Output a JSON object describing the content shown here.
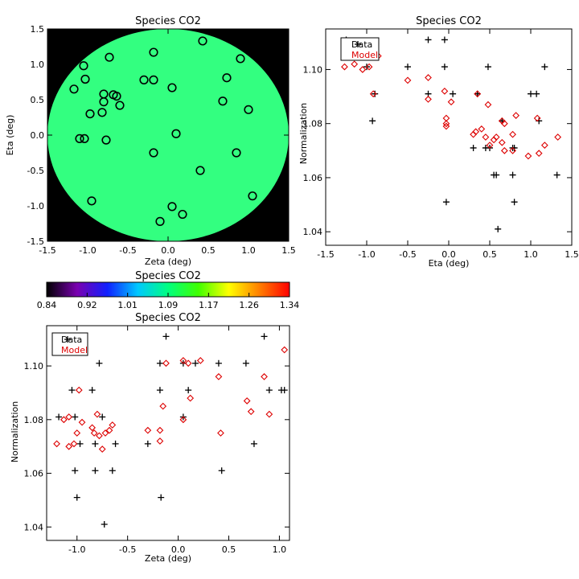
{
  "chart_data": [
    {
      "id": "map",
      "type": "scatter",
      "title": "Species CO2",
      "xlabel": "Zeta (deg)",
      "ylabel": "Eta (deg)",
      "xlim": [
        -1.5,
        1.5
      ],
      "ylim": [
        -1.5,
        1.5
      ],
      "x_ticks": [
        "-1.5",
        "-1.0",
        "-0.5",
        "0.0",
        "0.5",
        "1.0",
        "1.5"
      ],
      "y_ticks": [
        "1.5",
        "1.0",
        "0.5",
        "0.0",
        "-0.5",
        "-1.0",
        "-1.5"
      ],
      "field": {
        "shape": "disk",
        "radius": 1.5,
        "value": 1.09,
        "color": "#33ff80",
        "background": "#000000"
      },
      "points": [
        [
          0.43,
          1.33
        ],
        [
          -1.05,
          0.98
        ],
        [
          -0.73,
          1.1
        ],
        [
          -0.18,
          1.17
        ],
        [
          0.9,
          1.08
        ],
        [
          -1.03,
          0.79
        ],
        [
          -0.3,
          0.78
        ],
        [
          -0.18,
          0.78
        ],
        [
          0.73,
          0.81
        ],
        [
          -1.17,
          0.65
        ],
        [
          0.05,
          0.67
        ],
        [
          -0.8,
          0.58
        ],
        [
          -0.68,
          0.57
        ],
        [
          -0.64,
          0.55
        ],
        [
          -0.8,
          0.47
        ],
        [
          0.68,
          0.48
        ],
        [
          -0.6,
          0.42
        ],
        [
          -0.82,
          0.32
        ],
        [
          -0.97,
          0.3
        ],
        [
          1.0,
          0.36
        ],
        [
          0.1,
          0.02
        ],
        [
          -1.1,
          -0.05
        ],
        [
          -1.04,
          -0.05
        ],
        [
          -0.77,
          -0.07
        ],
        [
          -0.18,
          -0.25
        ],
        [
          0.85,
          -0.25
        ],
        [
          0.4,
          -0.5
        ],
        [
          1.05,
          -0.86
        ],
        [
          -0.95,
          -0.93
        ],
        [
          0.05,
          -1.01
        ],
        [
          0.18,
          -1.12
        ],
        [
          -0.1,
          -1.22
        ]
      ]
    },
    {
      "id": "cbar",
      "type": "heatmap",
      "title": "Species CO2",
      "range": [
        0.84,
        1.34
      ],
      "tick_labels": [
        "0.84",
        "0.92",
        "1.01",
        "1.09",
        "1.17",
        "1.26",
        "1.34"
      ],
      "colormap": [
        "#000000",
        "#7a00b0",
        "#1020ff",
        "#00c8ff",
        "#00ff80",
        "#40ff00",
        "#ffff00",
        "#ff8000",
        "#ff0000"
      ]
    },
    {
      "id": "eta",
      "type": "scatter",
      "title": "Species CO2",
      "xlabel": "Eta (deg)",
      "ylabel": "Normalization",
      "xlim": [
        -1.5,
        1.5
      ],
      "ylim": [
        1.035,
        1.115
      ],
      "x_ticks": [
        "-1.5",
        "-1.0",
        "-0.5",
        "0.0",
        "0.5",
        "1.0",
        "1.5"
      ],
      "y_ticks": [
        "1.04",
        "1.06",
        "1.08",
        "1.10"
      ],
      "legend": {
        "position": "top-left",
        "entries": [
          "Data",
          "Model"
        ]
      },
      "series": [
        {
          "name": "Data",
          "marker": "plus",
          "color": "#000000",
          "points": [
            [
              -1.25,
              1.111
            ],
            [
              -1.0,
              1.101
            ],
            [
              -0.93,
              1.081
            ],
            [
              -0.9,
              1.091
            ],
            [
              -0.5,
              1.101
            ],
            [
              -0.25,
              1.111
            ],
            [
              -0.25,
              1.091
            ],
            [
              -0.05,
              1.111
            ],
            [
              -0.05,
              1.101
            ],
            [
              -0.03,
              1.051
            ],
            [
              0.05,
              1.091
            ],
            [
              0.3,
              1.071
            ],
            [
              0.35,
              1.091
            ],
            [
              0.45,
              1.071
            ],
            [
              0.5,
              1.071
            ],
            [
              0.48,
              1.101
            ],
            [
              0.55,
              1.061
            ],
            [
              0.58,
              1.061
            ],
            [
              0.6,
              1.041
            ],
            [
              0.65,
              1.081
            ],
            [
              0.78,
              1.071
            ],
            [
              0.78,
              1.061
            ],
            [
              0.8,
              1.051
            ],
            [
              0.8,
              1.071
            ],
            [
              1.0,
              1.091
            ],
            [
              1.07,
              1.091
            ],
            [
              1.1,
              1.081
            ],
            [
              1.17,
              1.101
            ],
            [
              1.32,
              1.061
            ]
          ]
        },
        {
          "name": "Model",
          "marker": "diamond",
          "color": "#dd0000",
          "points": [
            [
              -1.27,
              1.101
            ],
            [
              -1.15,
              1.102
            ],
            [
              -1.05,
              1.1
            ],
            [
              -0.97,
              1.101
            ],
            [
              -0.86,
              1.105
            ],
            [
              -0.92,
              1.091
            ],
            [
              -0.5,
              1.096
            ],
            [
              -0.25,
              1.097
            ],
            [
              -0.25,
              1.089
            ],
            [
              -0.05,
              1.092
            ],
            [
              -0.03,
              1.082
            ],
            [
              -0.03,
              1.08
            ],
            [
              -0.03,
              1.079
            ],
            [
              0.03,
              1.088
            ],
            [
              0.3,
              1.076
            ],
            [
              0.33,
              1.077
            ],
            [
              0.35,
              1.091
            ],
            [
              0.4,
              1.078
            ],
            [
              0.45,
              1.075
            ],
            [
              0.48,
              1.087
            ],
            [
              0.5,
              1.072
            ],
            [
              0.55,
              1.074
            ],
            [
              0.58,
              1.075
            ],
            [
              0.65,
              1.081
            ],
            [
              0.65,
              1.073
            ],
            [
              0.68,
              1.08
            ],
            [
              0.68,
              1.07
            ],
            [
              0.78,
              1.076
            ],
            [
              0.78,
              1.07
            ],
            [
              0.82,
              1.083
            ],
            [
              0.97,
              1.068
            ],
            [
              1.08,
              1.082
            ],
            [
              1.1,
              1.069
            ],
            [
              1.17,
              1.072
            ],
            [
              1.33,
              1.075
            ]
          ]
        }
      ]
    },
    {
      "id": "zeta",
      "type": "scatter",
      "title": "Species CO2",
      "xlabel": "Zeta (deg)",
      "ylabel": "Normalization",
      "xlim": [
        -1.3,
        1.1
      ],
      "ylim": [
        1.035,
        1.115
      ],
      "x_ticks": [
        "-1.0",
        "-0.5",
        "0.0",
        "0.5",
        "1.0"
      ],
      "y_ticks": [
        "1.04",
        "1.06",
        "1.08",
        "1.10"
      ],
      "legend": {
        "position": "top-left",
        "entries": [
          "Data",
          "Model"
        ]
      },
      "series": [
        {
          "name": "Data",
          "marker": "plus",
          "color": "#000000",
          "points": [
            [
              -1.18,
              1.081
            ],
            [
              -1.05,
              1.091
            ],
            [
              -1.02,
              1.081
            ],
            [
              -1.02,
              1.061
            ],
            [
              -1.0,
              1.051
            ],
            [
              -0.97,
              1.071
            ],
            [
              -0.85,
              1.091
            ],
            [
              -0.82,
              1.071
            ],
            [
              -0.82,
              1.061
            ],
            [
              -0.78,
              1.101
            ],
            [
              -0.75,
              1.081
            ],
            [
              -0.73,
              1.041
            ],
            [
              -0.65,
              1.061
            ],
            [
              -0.62,
              1.071
            ],
            [
              -0.3,
              1.071
            ],
            [
              -0.18,
              1.091
            ],
            [
              -0.18,
              1.101
            ],
            [
              -0.17,
              1.051
            ],
            [
              -0.12,
              1.111
            ],
            [
              0.05,
              1.101
            ],
            [
              0.05,
              1.081
            ],
            [
              0.1,
              1.091
            ],
            [
              0.17,
              1.101
            ],
            [
              0.4,
              1.101
            ],
            [
              0.43,
              1.061
            ],
            [
              0.67,
              1.101
            ],
            [
              0.75,
              1.071
            ],
            [
              0.85,
              1.111
            ],
            [
              0.9,
              1.091
            ],
            [
              1.02,
              1.091
            ],
            [
              1.05,
              1.091
            ]
          ]
        },
        {
          "name": "Model",
          "marker": "diamond",
          "color": "#dd0000",
          "points": [
            [
              -1.2,
              1.071
            ],
            [
              -1.13,
              1.08
            ],
            [
              -1.08,
              1.081
            ],
            [
              -1.08,
              1.07
            ],
            [
              -1.03,
              1.071
            ],
            [
              -1.0,
              1.075
            ],
            [
              -0.98,
              1.091
            ],
            [
              -0.95,
              1.079
            ],
            [
              -0.85,
              1.077
            ],
            [
              -0.83,
              1.075
            ],
            [
              -0.8,
              1.082
            ],
            [
              -0.78,
              1.074
            ],
            [
              -0.75,
              1.069
            ],
            [
              -0.72,
              1.075
            ],
            [
              -0.68,
              1.076
            ],
            [
              -0.65,
              1.078
            ],
            [
              -0.3,
              1.076
            ],
            [
              -0.18,
              1.076
            ],
            [
              -0.18,
              1.072
            ],
            [
              -0.15,
              1.085
            ],
            [
              -0.12,
              1.101
            ],
            [
              0.05,
              1.08
            ],
            [
              0.05,
              1.102
            ],
            [
              0.1,
              1.101
            ],
            [
              0.12,
              1.088
            ],
            [
              0.22,
              1.102
            ],
            [
              0.4,
              1.096
            ],
            [
              0.42,
              1.075
            ],
            [
              0.68,
              1.087
            ],
            [
              0.72,
              1.083
            ],
            [
              0.85,
              1.096
            ],
            [
              0.9,
              1.082
            ],
            [
              1.05,
              1.106
            ]
          ]
        }
      ]
    }
  ]
}
